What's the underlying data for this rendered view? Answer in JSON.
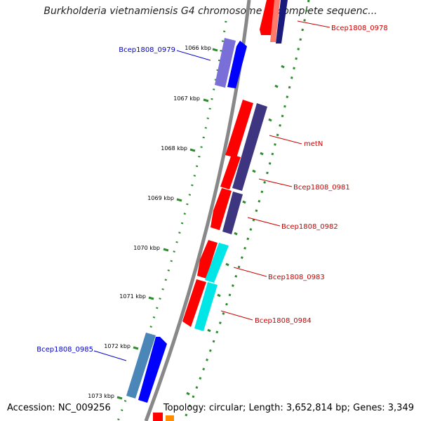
{
  "title": "Burkholderia vietnamiensis G4 chromosome 1, complete sequenc...",
  "footer": {
    "accession": "Accession: NC_009256",
    "topology": "Topology: circular; Length: 3,652,814 bp; Genes: 3,349"
  },
  "ticks": [
    "1066 kbp",
    "1067 kbp",
    "1068 kbp",
    "1069 kbp",
    "1070 kbp",
    "1071 kbp",
    "1072 kbp",
    "1073 kbp"
  ],
  "gene_labels": [
    "Bcep1808_0978",
    "Bcep1808_0979",
    "metN",
    "Bcep1808_0981",
    "Bcep1808_0982",
    "Bcep1808_0983",
    "Bcep1808_0984",
    "Bcep1808_0985"
  ],
  "colors": {
    "backbone": "#888888",
    "tick": "#2e8b2e",
    "label_red": "#cc0000",
    "label_blue": "#0000cc",
    "red": "#ff0000",
    "navy": "#3d3580",
    "blue": "#0000ff",
    "lavender": "#7a6fd8",
    "cyan": "#00e5e5",
    "steel": "#4a86b8",
    "salmon": "#ff7a6a",
    "orange": "#ff8c00"
  }
}
